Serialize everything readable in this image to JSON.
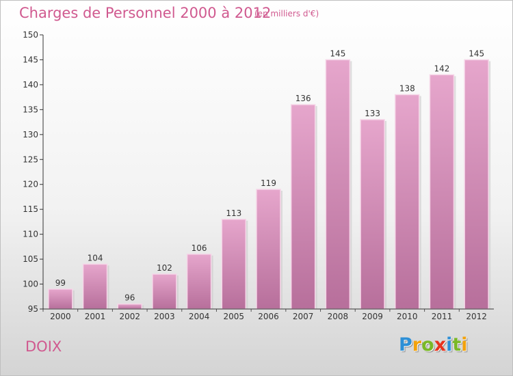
{
  "header": {
    "title": "Charges de Personnel 2000 à 2012",
    "subtitle": "(en milliers d'€)"
  },
  "footer": {
    "commune": "DOIX",
    "logo": {
      "letters": [
        {
          "char": "P",
          "color": "#2d8fd6"
        },
        {
          "char": "r",
          "color": "#f2a20c"
        },
        {
          "char": "o",
          "color": "#7ab827"
        },
        {
          "char": "x",
          "color": "#e8331d"
        },
        {
          "char": "i",
          "color": "#2d8fd6"
        },
        {
          "char": "t",
          "color": "#7ab827"
        },
        {
          "char": "i",
          "color": "#f2a20c"
        }
      ]
    }
  },
  "chart_data": {
    "type": "bar",
    "categories": [
      "2000",
      "2001",
      "2002",
      "2003",
      "2004",
      "2005",
      "2006",
      "2007",
      "2008",
      "2009",
      "2010",
      "2011",
      "2012"
    ],
    "values": [
      99,
      104,
      96,
      102,
      106,
      113,
      119,
      136,
      145,
      133,
      138,
      142,
      145
    ],
    "data_labels": [
      "99",
      "104",
      "96",
      "102",
      "106",
      "113",
      "119",
      "136",
      "145",
      "133",
      "138",
      "142",
      "145"
    ],
    "ylim": [
      95,
      150
    ],
    "yticks": [
      95,
      100,
      105,
      110,
      115,
      120,
      125,
      130,
      135,
      140,
      145,
      150
    ],
    "grid": false,
    "bar_color_top": "#e6a6cc",
    "bar_color_bottom": "#b76f9b",
    "text_color": "#d0598f"
  }
}
